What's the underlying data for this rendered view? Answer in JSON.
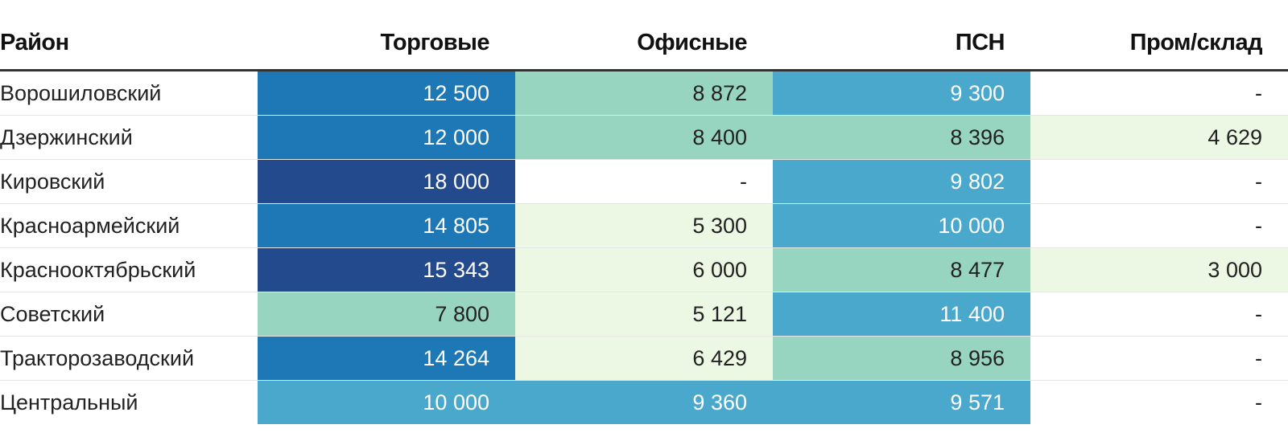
{
  "chart_data": {
    "type": "table",
    "columns": [
      "Район",
      "Торговые",
      "Офисные",
      "ПСН",
      "Пром/склад"
    ],
    "rows": [
      {
        "district": "Ворошиловский",
        "values": [
          12500,
          8872,
          9300,
          null
        ]
      },
      {
        "district": "Дзержинский",
        "values": [
          12000,
          8400,
          8396,
          4629
        ]
      },
      {
        "district": "Кировский",
        "values": [
          18000,
          null,
          9802,
          null
        ]
      },
      {
        "district": "Красноармейский",
        "values": [
          14805,
          5300,
          10000,
          null
        ]
      },
      {
        "district": "Краснооктябрьский",
        "values": [
          15343,
          6000,
          8477,
          3000
        ]
      },
      {
        "district": "Советский",
        "values": [
          7800,
          5121,
          11400,
          null
        ]
      },
      {
        "district": "Тракторозаводский",
        "values": [
          14264,
          6429,
          8956,
          null
        ]
      },
      {
        "district": "Центральный",
        "values": [
          10000,
          9360,
          9571,
          null
        ]
      }
    ],
    "missing_label": "-",
    "color_scale": {
      "thresholds": [
        7000,
        9000,
        12000,
        15000
      ],
      "colors": [
        "#edf8e4",
        "#98d5c1",
        "#4aa8cc",
        "#1e78b6",
        "#234a8d"
      ],
      "empty": "#ffffff",
      "light_text": "#ffffff",
      "dark_text": "#222222"
    }
  }
}
